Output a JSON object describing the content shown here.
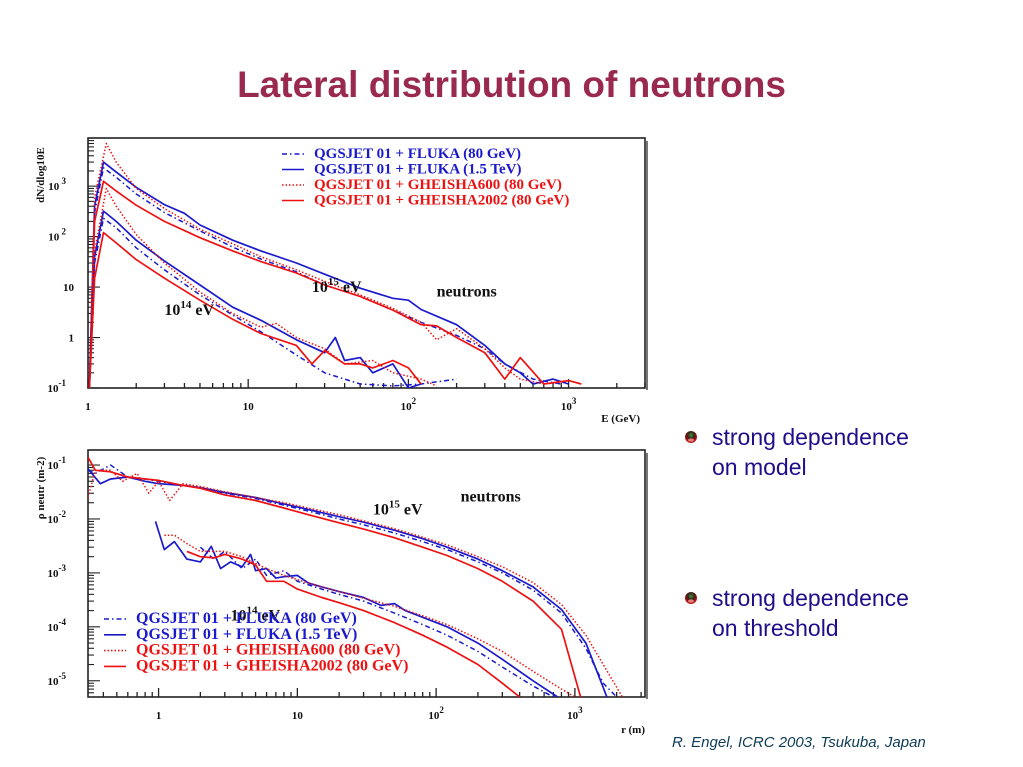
{
  "slide": {
    "title": "Lateral distribution of neutrons",
    "bullets": [
      {
        "icon": "bullet-ball-icon",
        "lines": [
          "strong dependence",
          "on model"
        ]
      },
      {
        "icon": "bullet-ball-icon",
        "lines": [
          "strong dependence",
          "on threshold"
        ]
      }
    ],
    "footer": "R. Engel, ICRC 2003, Tsukuba, Japan"
  },
  "colors": {
    "title": "#99294f",
    "bullet_text": "#1f0d8c",
    "footer": "#0d3b55",
    "fluka": "#1a1acc",
    "gheisha": "#ee1111"
  },
  "chart_data": [
    {
      "type": "line",
      "title": "",
      "xlabel": "E  (GeV)",
      "ylabel": "dN/dlog10E",
      "xscale": "log",
      "yscale": "log",
      "xlim": [
        1,
        3000
      ],
      "ylim": [
        0.1,
        9000
      ],
      "xticks": [
        {
          "v": 1,
          "label": "1"
        },
        {
          "v": 10,
          "label": "10"
        },
        {
          "v": 100,
          "label": "10",
          "sup": "2"
        },
        {
          "v": 1000,
          "label": "10",
          "sup": "3"
        }
      ],
      "yticks": [
        {
          "v": 0.1,
          "label": "10",
          "sup": "-1"
        },
        {
          "v": 1,
          "label": "1"
        },
        {
          "v": 10,
          "label": "10"
        },
        {
          "v": 100,
          "label": "10",
          "sup": " 2"
        },
        {
          "v": 1000,
          "label": "10",
          "sup": " 3"
        }
      ],
      "annotations": [
        {
          "text": "10",
          "sup": "15",
          "after": " eV",
          "at": [
            25,
            8
          ]
        },
        {
          "text": "10",
          "sup": "14",
          "after": " eV",
          "at": [
            3.0,
            2.8
          ]
        },
        {
          "text": "neutrons",
          "at": [
            150,
            6.5
          ]
        }
      ],
      "legend": {
        "placement": "top-right",
        "entries": [
          {
            "label": "QGSJET 01 + FLUKA (80 GeV)",
            "color": "#1a1acc",
            "style": "dashdot"
          },
          {
            "label": "QGSJET 01 + FLUKA (1.5 TeV)",
            "color": "#1a1acc",
            "style": "solid"
          },
          {
            "label": "QGSJET 01 + GHEISHA600 (80 GeV)",
            "color": "#ee1111",
            "style": "dotted"
          },
          {
            "label": "QGSJET 01 + GHEISHA2002 (80 GeV)",
            "color": "#ee1111",
            "style": "solid"
          }
        ]
      },
      "series": [
        {
          "name": "QGSJET 01 + FLUKA (80 GeV) 1e15",
          "color": "#1a1acc",
          "style": "dashdot",
          "x": [
            1.02,
            1.1,
            1.25,
            1.5,
            2,
            3,
            5,
            8,
            12,
            20,
            30,
            50,
            80,
            120,
            200,
            300,
            400,
            600,
            900
          ],
          "y": [
            0.1,
            300,
            2300,
            1500,
            700,
            300,
            130,
            62,
            36,
            20,
            11,
            6.5,
            3.5,
            2,
            1.1,
            0.6,
            0.3,
            0.15,
            0.12
          ]
        },
        {
          "name": "QGSJET 01 + FLUKA (1.5 TeV) 1e15",
          "color": "#1a1acc",
          "style": "solid",
          "x": [
            1.02,
            1.1,
            1.25,
            1.5,
            2,
            3,
            4,
            5,
            8,
            12,
            20,
            30,
            50,
            80,
            100,
            120,
            200,
            300,
            400,
            500,
            600,
            800,
            1000
          ],
          "y": [
            0.1,
            400,
            3000,
            1900,
            950,
            430,
            290,
            170,
            85,
            52,
            30,
            18,
            9.5,
            6,
            5.5,
            3.6,
            1.8,
            0.7,
            0.3,
            0.2,
            0.12,
            0.15,
            0.12
          ]
        },
        {
          "name": "QGSJET 01 + GHEISHA600 (80 GeV) 1e15",
          "color": "#ee1111",
          "style": "dotted",
          "x": [
            1.02,
            1.1,
            1.3,
            1.5,
            2,
            3,
            5,
            8,
            12,
            20,
            30,
            50,
            80,
            120,
            150,
            200,
            300,
            400,
            500,
            700
          ],
          "y": [
            0.1,
            600,
            7000,
            3000,
            900,
            360,
            140,
            72,
            40,
            22,
            13,
            7,
            3.8,
            2,
            0.9,
            1.5,
            0.6,
            0.25,
            0.15,
            0.12
          ]
        },
        {
          "name": "QGSJET 01 + GHEISHA2002 (80 GeV) 1e15",
          "color": "#ee1111",
          "style": "solid",
          "x": [
            1.02,
            1.1,
            1.25,
            1.5,
            2,
            3,
            5,
            8,
            12,
            20,
            30,
            50,
            80,
            120,
            150,
            200,
            300,
            400,
            500,
            700,
            1000,
            1200
          ],
          "y": [
            0.1,
            200,
            1250,
            800,
            420,
            200,
            95,
            52,
            32,
            19,
            11,
            6.5,
            3.5,
            1.8,
            1.7,
            1.0,
            0.5,
            0.15,
            0.4,
            0.12,
            0.14,
            0.12
          ]
        },
        {
          "name": "QGSJET 01 + FLUKA (80 GeV) 1e14",
          "color": "#1a1acc",
          "style": "dashdot",
          "x": [
            1.02,
            1.1,
            1.25,
            1.5,
            2,
            3,
            5,
            8,
            12,
            20,
            30,
            40,
            50,
            80,
            120,
            200
          ],
          "y": [
            0.1,
            30,
            230,
            150,
            60,
            22,
            7,
            2.8,
            1.3,
            0.45,
            0.2,
            0.15,
            0.12,
            0.11,
            0.12,
            0.15
          ]
        },
        {
          "name": "QGSJET 01 + FLUKA (1.5 TeV) 1e14",
          "color": "#1a1acc",
          "style": "solid",
          "x": [
            1.02,
            1.1,
            1.25,
            1.5,
            2,
            3,
            5,
            8,
            12,
            15,
            20,
            30,
            35,
            40,
            50,
            60,
            80,
            100,
            120
          ],
          "y": [
            0.1,
            40,
            320,
            200,
            85,
            33,
            11,
            4,
            2.2,
            1.5,
            0.9,
            0.5,
            1.0,
            0.35,
            0.4,
            0.2,
            0.3,
            0.1,
            0.12
          ]
        },
        {
          "name": "QGSJET 01 + GHEISHA600 (80 GeV) 1e14",
          "color": "#ee1111",
          "style": "dotted",
          "x": [
            1.02,
            1.1,
            1.3,
            1.5,
            2,
            3,
            5,
            8,
            12,
            15,
            20,
            30,
            40,
            60,
            80,
            120,
            150
          ],
          "y": [
            0.1,
            50,
            900,
            400,
            110,
            30,
            8,
            3,
            1.6,
            1.9,
            1.0,
            0.6,
            0.3,
            0.35,
            0.2,
            0.15,
            0.11
          ]
        },
        {
          "name": "QGSJET 01 + GHEISHA2002 (80 GeV) 1e14",
          "color": "#ee1111",
          "style": "solid",
          "x": [
            1.02,
            1.1,
            1.25,
            1.5,
            2,
            3,
            5,
            8,
            12,
            20,
            25,
            30,
            40,
            50,
            60,
            80,
            100,
            120
          ],
          "y": [
            0.1,
            15,
            120,
            75,
            35,
            15,
            5.5,
            2.3,
            1.2,
            0.7,
            0.3,
            0.55,
            0.3,
            0.3,
            0.25,
            0.35,
            0.25,
            0.12
          ]
        }
      ]
    },
    {
      "type": "line",
      "title": "",
      "xlabel": "r (m)",
      "ylabel": "ρ neutr (m-2)",
      "xscale": "log",
      "yscale": "log",
      "xlim": [
        0.31,
        3200
      ],
      "ylim": [
        5e-06,
        0.19
      ],
      "xticks": [
        {
          "v": 1,
          "label": "1"
        },
        {
          "v": 10,
          "label": "10"
        },
        {
          "v": 100,
          "label": "10",
          "sup": "2"
        },
        {
          "v": 1000,
          "label": "10",
          "sup": "3"
        }
      ],
      "yticks": [
        {
          "v": 0.1,
          "label": "10",
          "sup": "-1"
        },
        {
          "v": 0.01,
          "label": "10",
          "sup": "-2"
        },
        {
          "v": 0.001,
          "label": "10",
          "sup": "-3"
        },
        {
          "v": 0.0001,
          "label": "10",
          "sup": "-4"
        },
        {
          "v": 1e-05,
          "label": "10",
          "sup": "-5"
        }
      ],
      "annotations": [
        {
          "text": "10",
          "sup": "15",
          "after": " eV",
          "at": [
            35,
            0.012
          ]
        },
        {
          "text": "10",
          "sup": "14",
          "after": " eV",
          "at": [
            3.3,
            0.00013
          ]
        },
        {
          "text": "neutrons",
          "at": [
            150,
            0.021
          ]
        }
      ],
      "legend": {
        "placement": "bottom-left",
        "entries": [
          {
            "label": "QGSJET 01 + FLUKA (80 GeV)",
            "color": "#1a1acc",
            "style": "dashdot"
          },
          {
            "label": "QGSJET 01 + FLUKA (1.5 TeV)",
            "color": "#1a1acc",
            "style": "solid"
          },
          {
            "label": "QGSJET 01 + GHEISHA600 (80 GeV)",
            "color": "#ee1111",
            "style": "dotted"
          },
          {
            "label": "QGSJET 01 + GHEISHA2002 (80 GeV)",
            "color": "#ee1111",
            "style": "solid"
          }
        ]
      },
      "series": [
        {
          "name": "QGSJET 01 + FLUKA (80 GeV) 1e15",
          "color": "#1a1acc",
          "style": "dashdot",
          "x": [
            0.31,
            0.35,
            0.45,
            0.6,
            0.8,
            1,
            1.5,
            2,
            3,
            5,
            8,
            12,
            20,
            30,
            50,
            80,
            120,
            200,
            300,
            500,
            800,
            1200,
            1600,
            2000
          ],
          "y": [
            0.08,
            0.07,
            0.1,
            0.06,
            0.055,
            0.05,
            0.042,
            0.038,
            0.03,
            0.024,
            0.018,
            0.014,
            0.01,
            0.0078,
            0.0055,
            0.0038,
            0.0027,
            0.0016,
            0.001,
            0.00048,
            0.00018,
            4e-05,
            9e-06,
            5e-06
          ]
        },
        {
          "name": "QGSJET 01 + FLUKA (1.5 TeV) 1e15",
          "color": "#1a1acc",
          "style": "solid",
          "x": [
            0.31,
            0.38,
            0.45,
            0.6,
            0.8,
            1,
            1.5,
            2,
            3,
            5,
            8,
            12,
            20,
            30,
            50,
            80,
            120,
            200,
            300,
            500,
            800,
            1200,
            1700
          ],
          "y": [
            0.085,
            0.045,
            0.055,
            0.06,
            0.05,
            0.045,
            0.042,
            0.038,
            0.031,
            0.025,
            0.019,
            0.015,
            0.011,
            0.0087,
            0.0062,
            0.0043,
            0.003,
            0.0018,
            0.0011,
            0.00055,
            0.00021,
            5e-05,
            5e-06
          ]
        },
        {
          "name": "QGSJET 01 + GHEISHA600 (80 GeV) 1e15",
          "color": "#ee1111",
          "style": "dotted",
          "x": [
            0.31,
            0.35,
            0.45,
            0.55,
            0.7,
            0.85,
            1,
            1.2,
            1.5,
            2,
            3,
            5,
            8,
            12,
            20,
            30,
            50,
            80,
            120,
            200,
            300,
            500,
            800,
            1200,
            2200
          ],
          "y": [
            0.025,
            0.08,
            0.08,
            0.05,
            0.07,
            0.03,
            0.05,
            0.022,
            0.045,
            0.04,
            0.032,
            0.025,
            0.02,
            0.016,
            0.012,
            0.0092,
            0.0066,
            0.0046,
            0.0033,
            0.002,
            0.0013,
            0.00066,
            0.00026,
            7e-05,
            5e-06
          ]
        },
        {
          "name": "QGSJET 01 + GHEISHA2002 (80 GeV) 1e15",
          "color": "#ee1111",
          "style": "solid",
          "x": [
            0.31,
            0.35,
            0.45,
            0.6,
            0.8,
            1,
            1.5,
            2,
            3,
            5,
            8,
            12,
            20,
            30,
            50,
            80,
            120,
            200,
            300,
            500,
            800,
            1100
          ],
          "y": [
            0.14,
            0.08,
            0.075,
            0.06,
            0.055,
            0.052,
            0.042,
            0.037,
            0.028,
            0.022,
            0.016,
            0.012,
            0.0085,
            0.0065,
            0.0045,
            0.003,
            0.0021,
            0.0012,
            0.0007,
            0.0003,
            9e-05,
            5e-06
          ]
        },
        {
          "name": "QGSJET 01 + FLUKA (80 GeV) 1e14",
          "color": "#1a1acc",
          "style": "dashdot",
          "x": [
            2,
            2.5,
            3,
            4,
            5,
            6,
            8,
            10,
            15,
            20,
            30,
            50,
            80,
            120,
            200,
            300,
            500,
            700
          ],
          "y": [
            0.003,
            0.0018,
            0.0025,
            0.0012,
            0.0018,
            0.0009,
            0.0011,
            0.0007,
            0.0005,
            0.0004,
            0.0003,
            0.00018,
            0.00011,
            7e-05,
            3.5e-05,
            1.8e-05,
            8e-06,
            5e-06
          ]
        },
        {
          "name": "QGSJET 01 + FLUKA (1.5 TeV) 1e14",
          "color": "#1a1acc",
          "style": "solid",
          "x": [
            0.95,
            1.1,
            1.3,
            1.6,
            2,
            2.4,
            2.8,
            3.3,
            4,
            4.6,
            5,
            6,
            7,
            8,
            10,
            12,
            15,
            20,
            30,
            40,
            50,
            60,
            80,
            120,
            200,
            300,
            500,
            750
          ],
          "y": [
            0.009,
            0.0027,
            0.0038,
            0.0018,
            0.0016,
            0.0031,
            0.0012,
            0.0016,
            0.0013,
            0.0022,
            0.0011,
            0.0012,
            0.0008,
            0.00085,
            0.0009,
            0.00065,
            0.00055,
            0.00045,
            0.00035,
            0.00025,
            0.00027,
            0.0002,
            0.00015,
            0.0001,
            5e-05,
            2.5e-05,
            1e-05,
            5e-06
          ]
        },
        {
          "name": "QGSJET 01 + GHEISHA600 (80 GeV) 1e14",
          "color": "#ee1111",
          "style": "dotted",
          "x": [
            1.1,
            1.3,
            1.6,
            2,
            3,
            4,
            5,
            6,
            8,
            12,
            20,
            30,
            50,
            80,
            120,
            200,
            300,
            500,
            800,
            1000
          ],
          "y": [
            0.005,
            0.005,
            0.0035,
            0.0025,
            0.0025,
            0.002,
            0.0015,
            0.0012,
            0.0009,
            0.00065,
            0.00045,
            0.00034,
            0.00024,
            0.00016,
            0.00011,
            6e-05,
            3.5e-05,
            1.5e-05,
            7e-06,
            5e-06
          ]
        },
        {
          "name": "QGSJET 01 + GHEISHA2002 (80 GeV) 1e14",
          "color": "#ee1111",
          "style": "solid",
          "x": [
            1.6,
            2,
            2.5,
            3,
            4,
            5,
            6,
            8,
            10,
            15,
            20,
            30,
            50,
            80,
            120,
            200,
            300,
            400
          ],
          "y": [
            0.0025,
            0.002,
            0.0019,
            0.0022,
            0.0018,
            0.0014,
            0.0007,
            0.0007,
            0.0005,
            0.00035,
            0.00028,
            0.0002,
            0.00012,
            7e-05,
            4.2e-05,
            2e-05,
            9e-06,
            5e-06
          ]
        }
      ]
    }
  ]
}
